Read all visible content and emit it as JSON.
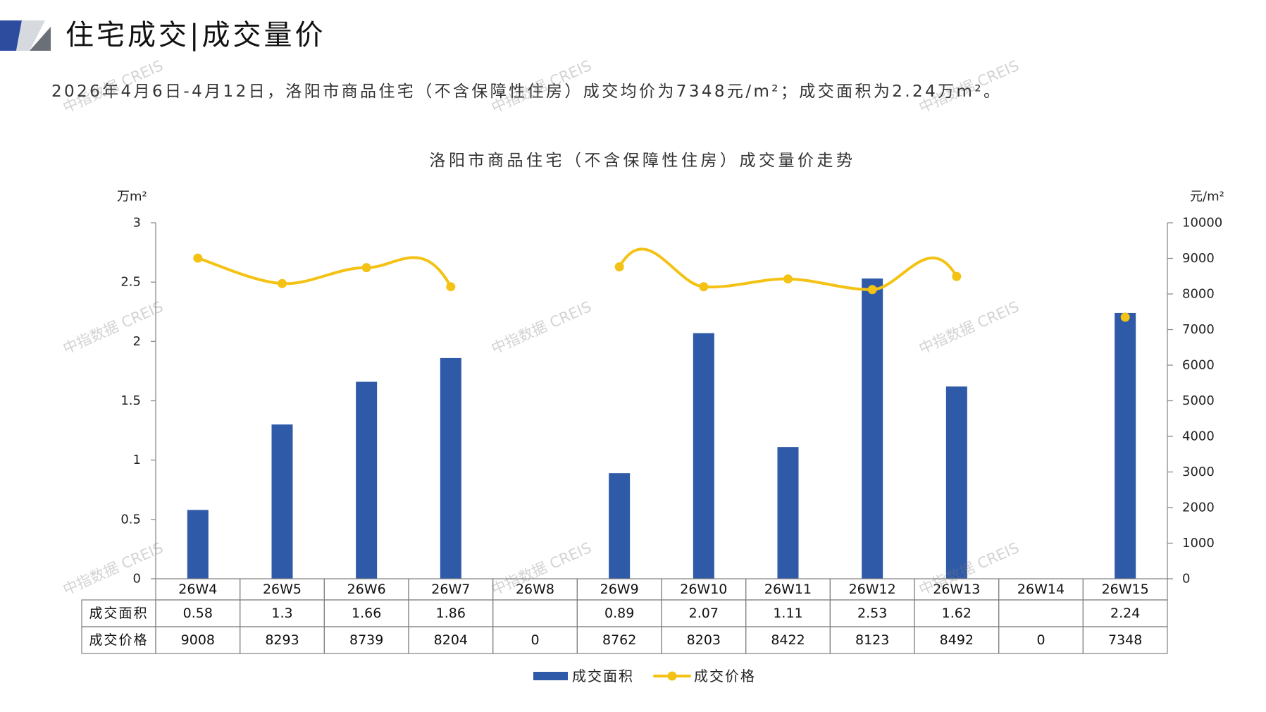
{
  "header": {
    "title": "住宅成交|成交量价"
  },
  "summary": "2026年4月6日-4月12日，洛阳市商品住宅（不含保障性住房）成交均价为7348元/m²；成交面积为2.24万m²。",
  "watermark": "中指数据 CREIS",
  "colors": {
    "logo_blue": "#2E4C9E",
    "logo_light": "#D6D9DE",
    "logo_dark": "#6B7078",
    "bar": "#2F5AA8",
    "line": "#F4C214",
    "axis": "#8C8C8C",
    "table_border": "#808080"
  },
  "chart_data": {
    "type": "bar",
    "title": "洛阳市商品住宅（不含保障性住房）成交量价走势",
    "categories": [
      "26W4",
      "26W5",
      "26W6",
      "26W7",
      "26W8",
      "26W9",
      "26W10",
      "26W11",
      "26W12",
      "26W13",
      "26W14",
      "26W15"
    ],
    "y_left": {
      "unit": "万m²",
      "range": [
        0,
        3
      ],
      "ticks": [
        0,
        0.5,
        1,
        1.5,
        2,
        2.5,
        3
      ]
    },
    "y_right": {
      "unit": "元/m²",
      "range": [
        0,
        10000
      ],
      "ticks": [
        0,
        1000,
        2000,
        3000,
        4000,
        5000,
        6000,
        7000,
        8000,
        9000,
        10000
      ]
    },
    "series": [
      {
        "name": "成交面积",
        "type": "bar",
        "axis": "left",
        "values": [
          0.58,
          1.3,
          1.66,
          1.86,
          null,
          0.89,
          2.07,
          1.11,
          2.53,
          1.62,
          null,
          2.24
        ]
      },
      {
        "name": "成交价格",
        "type": "line",
        "axis": "right",
        "smooth": true,
        "markers": true,
        "values": [
          9008,
          8293,
          8739,
          8204,
          0,
          8762,
          8203,
          8422,
          8123,
          8492,
          0,
          7348
        ]
      }
    ],
    "grid": false,
    "legend": "bottom",
    "data_table": true
  }
}
